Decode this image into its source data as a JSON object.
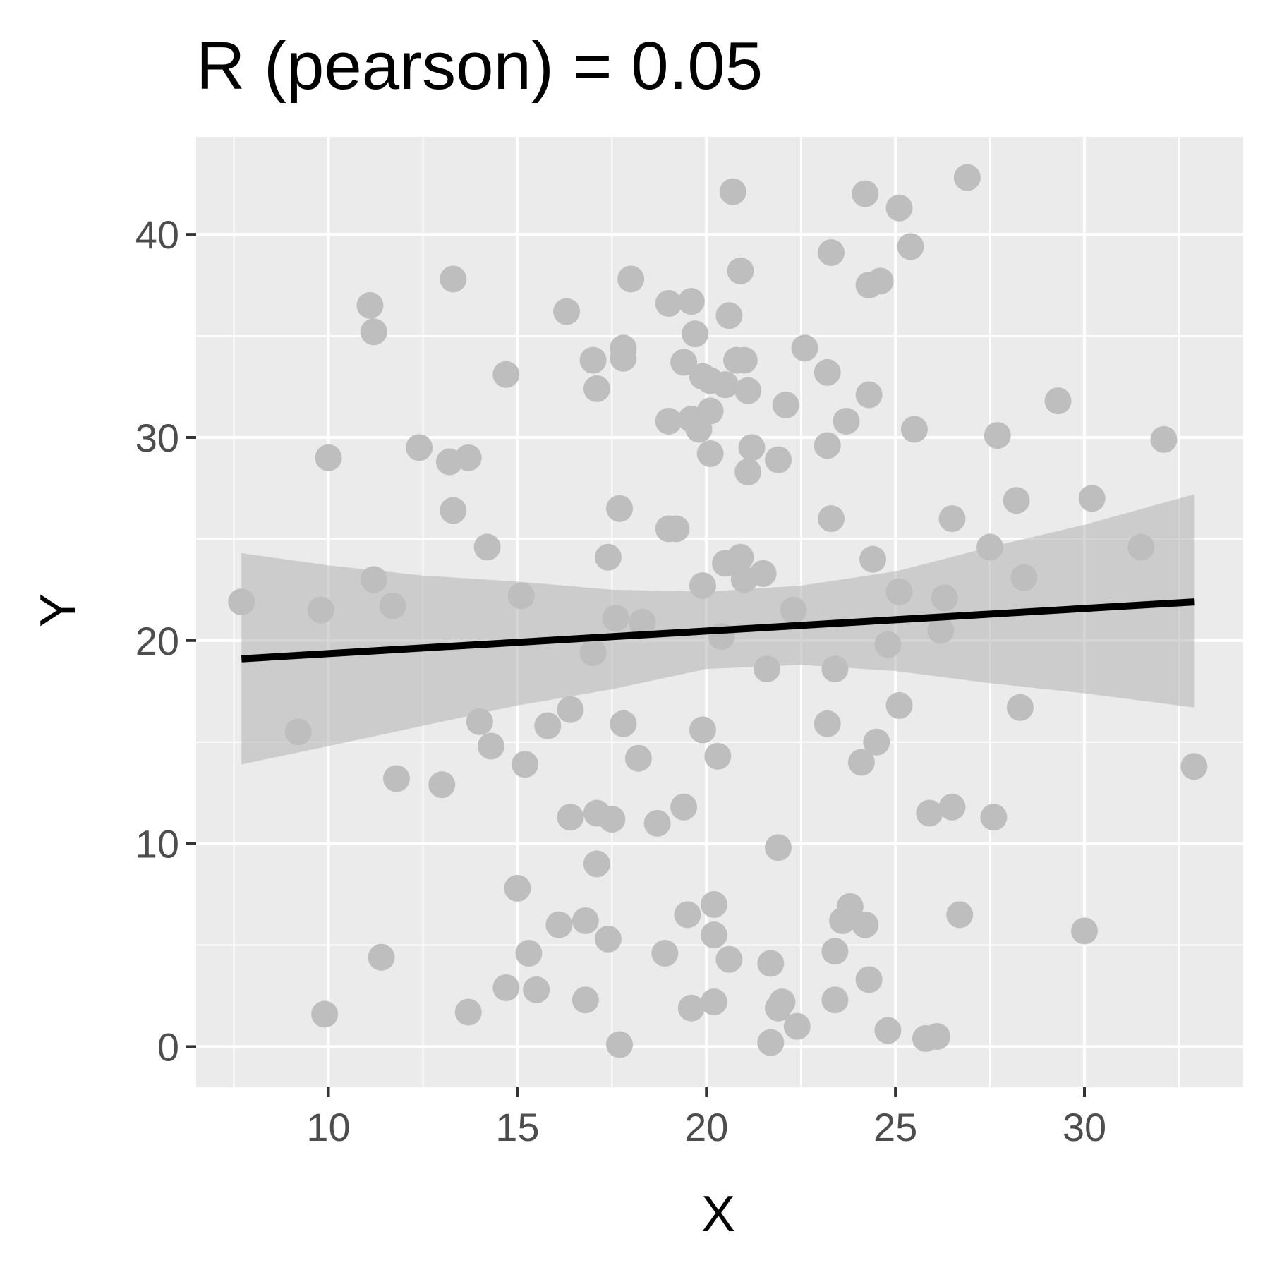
{
  "chart_data": {
    "type": "scatter",
    "title": "R (pearson) = 0.05",
    "xlabel": "X",
    "ylabel": "Y",
    "xlim": [
      6.5,
      34.2
    ],
    "ylim": [
      -2,
      44.8
    ],
    "x_ticks": [
      10,
      15,
      20,
      25,
      30
    ],
    "y_ticks": [
      0,
      10,
      20,
      30,
      40
    ],
    "x_tick_labels": [
      "10",
      "15",
      "20",
      "25",
      "30"
    ],
    "y_tick_labels": [
      "0",
      "10",
      "20",
      "30",
      "40"
    ],
    "grid": true,
    "legend": "none",
    "colors": {
      "panel": "#EBEBEB",
      "grid": "#FFFFFF",
      "points": "#BEBEBE",
      "band": "#B3B3B3",
      "line": "#000000"
    },
    "points": [
      [
        7.7,
        21.9
      ],
      [
        9.2,
        15.5
      ],
      [
        9.8,
        21.5
      ],
      [
        10.0,
        29.0
      ],
      [
        9.9,
        1.6
      ],
      [
        11.1,
        36.5
      ],
      [
        11.2,
        35.2
      ],
      [
        11.2,
        23.0
      ],
      [
        11.7,
        21.7
      ],
      [
        11.8,
        13.2
      ],
      [
        11.4,
        4.4
      ],
      [
        12.4,
        29.5
      ],
      [
        13.0,
        12.9
      ],
      [
        13.2,
        28.8
      ],
      [
        13.3,
        37.8
      ],
      [
        13.3,
        26.4
      ],
      [
        13.7,
        29.0
      ],
      [
        13.7,
        1.7
      ],
      [
        14.0,
        16.0
      ],
      [
        14.2,
        24.6
      ],
      [
        14.3,
        14.8
      ],
      [
        14.7,
        33.1
      ],
      [
        14.7,
        2.9
      ],
      [
        15.0,
        7.8
      ],
      [
        15.1,
        22.2
      ],
      [
        15.2,
        13.9
      ],
      [
        15.3,
        4.6
      ],
      [
        15.5,
        2.8
      ],
      [
        15.8,
        15.8
      ],
      [
        16.1,
        6.0
      ],
      [
        16.3,
        36.2
      ],
      [
        16.4,
        11.3
      ],
      [
        16.4,
        16.6
      ],
      [
        16.8,
        6.2
      ],
      [
        16.8,
        2.3
      ],
      [
        17.0,
        19.4
      ],
      [
        17.0,
        33.8
      ],
      [
        17.1,
        32.4
      ],
      [
        17.1,
        11.5
      ],
      [
        17.1,
        9.0
      ],
      [
        17.4,
        24.1
      ],
      [
        17.4,
        5.3
      ],
      [
        17.5,
        11.2
      ],
      [
        17.7,
        26.5
      ],
      [
        17.6,
        21.1
      ],
      [
        17.8,
        34.4
      ],
      [
        17.8,
        33.9
      ],
      [
        17.8,
        15.9
      ],
      [
        17.7,
        0.1
      ],
      [
        18.0,
        37.8
      ],
      [
        18.3,
        20.9
      ],
      [
        18.2,
        14.2
      ],
      [
        18.7,
        11.0
      ],
      [
        18.9,
        4.6
      ],
      [
        19.0,
        36.6
      ],
      [
        19.0,
        30.8
      ],
      [
        19.0,
        25.5
      ],
      [
        19.2,
        25.5
      ],
      [
        19.4,
        11.8
      ],
      [
        19.4,
        33.7
      ],
      [
        19.6,
        36.7
      ],
      [
        19.6,
        30.9
      ],
      [
        19.5,
        6.5
      ],
      [
        19.6,
        1.9
      ],
      [
        19.7,
        35.1
      ],
      [
        19.8,
        30.4
      ],
      [
        19.9,
        33.0
      ],
      [
        19.9,
        22.7
      ],
      [
        19.9,
        15.6
      ],
      [
        20.1,
        32.8
      ],
      [
        20.1,
        31.3
      ],
      [
        20.1,
        29.2
      ],
      [
        20.2,
        7.0
      ],
      [
        20.2,
        5.5
      ],
      [
        20.3,
        14.3
      ],
      [
        20.2,
        2.2
      ],
      [
        20.4,
        20.2
      ],
      [
        20.5,
        32.6
      ],
      [
        20.5,
        23.8
      ],
      [
        20.6,
        36.0
      ],
      [
        20.6,
        4.3
      ],
      [
        20.7,
        42.1
      ],
      [
        20.8,
        33.8
      ],
      [
        20.9,
        38.2
      ],
      [
        21.0,
        33.8
      ],
      [
        20.9,
        24.1
      ],
      [
        21.0,
        23.0
      ],
      [
        21.1,
        32.3
      ],
      [
        21.1,
        28.3
      ],
      [
        21.2,
        29.5
      ],
      [
        21.5,
        23.3
      ],
      [
        21.6,
        18.6
      ],
      [
        21.7,
        4.1
      ],
      [
        21.7,
        0.2
      ],
      [
        21.9,
        28.9
      ],
      [
        21.9,
        9.8
      ],
      [
        21.9,
        1.9
      ],
      [
        22.1,
        31.6
      ],
      [
        22.0,
        2.2
      ],
      [
        22.3,
        21.5
      ],
      [
        22.4,
        1.0
      ],
      [
        22.6,
        34.4
      ],
      [
        23.2,
        33.2
      ],
      [
        23.2,
        29.6
      ],
      [
        23.2,
        15.9
      ],
      [
        23.3,
        39.1
      ],
      [
        23.3,
        26.0
      ],
      [
        23.4,
        18.6
      ],
      [
        23.4,
        4.7
      ],
      [
        23.4,
        2.3
      ],
      [
        23.6,
        6.2
      ],
      [
        23.7,
        30.8
      ],
      [
        23.8,
        6.9
      ],
      [
        24.1,
        14.0
      ],
      [
        24.2,
        6.0
      ],
      [
        24.2,
        42.0
      ],
      [
        24.3,
        37.5
      ],
      [
        24.3,
        32.1
      ],
      [
        24.3,
        3.3
      ],
      [
        24.4,
        24.0
      ],
      [
        24.5,
        15.0
      ],
      [
        24.6,
        37.7
      ],
      [
        24.8,
        19.8
      ],
      [
        24.8,
        0.8
      ],
      [
        25.1,
        41.3
      ],
      [
        25.1,
        22.4
      ],
      [
        25.1,
        16.8
      ],
      [
        25.4,
        39.4
      ],
      [
        25.5,
        30.4
      ],
      [
        25.8,
        0.4
      ],
      [
        25.9,
        11.5
      ],
      [
        26.1,
        0.5
      ],
      [
        26.2,
        20.5
      ],
      [
        26.3,
        22.1
      ],
      [
        26.5,
        26.0
      ],
      [
        26.5,
        11.8
      ],
      [
        26.7,
        6.5
      ],
      [
        26.9,
        42.8
      ],
      [
        27.5,
        24.6
      ],
      [
        27.6,
        11.3
      ],
      [
        27.7,
        30.1
      ],
      [
        28.2,
        26.9
      ],
      [
        28.3,
        16.7
      ],
      [
        28.4,
        23.1
      ],
      [
        29.3,
        31.8
      ],
      [
        30.0,
        5.7
      ],
      [
        30.2,
        27.0
      ],
      [
        31.5,
        24.6
      ],
      [
        32.1,
        29.9
      ],
      [
        32.9,
        13.8
      ]
    ],
    "fit_line": {
      "x": [
        7.7,
        32.9
      ],
      "y": [
        19.1,
        21.9
      ]
    },
    "confidence_band": {
      "x": [
        7.7,
        10,
        12.5,
        15,
        17.5,
        20,
        22.5,
        25,
        27.5,
        30,
        32.9
      ],
      "upper": [
        24.3,
        23.7,
        23.2,
        22.9,
        22.5,
        22.4,
        22.7,
        23.4,
        24.6,
        25.7,
        27.2
      ],
      "lower": [
        13.9,
        14.8,
        15.8,
        16.8,
        17.6,
        18.6,
        18.8,
        18.5,
        17.9,
        17.4,
        16.7
      ]
    }
  }
}
